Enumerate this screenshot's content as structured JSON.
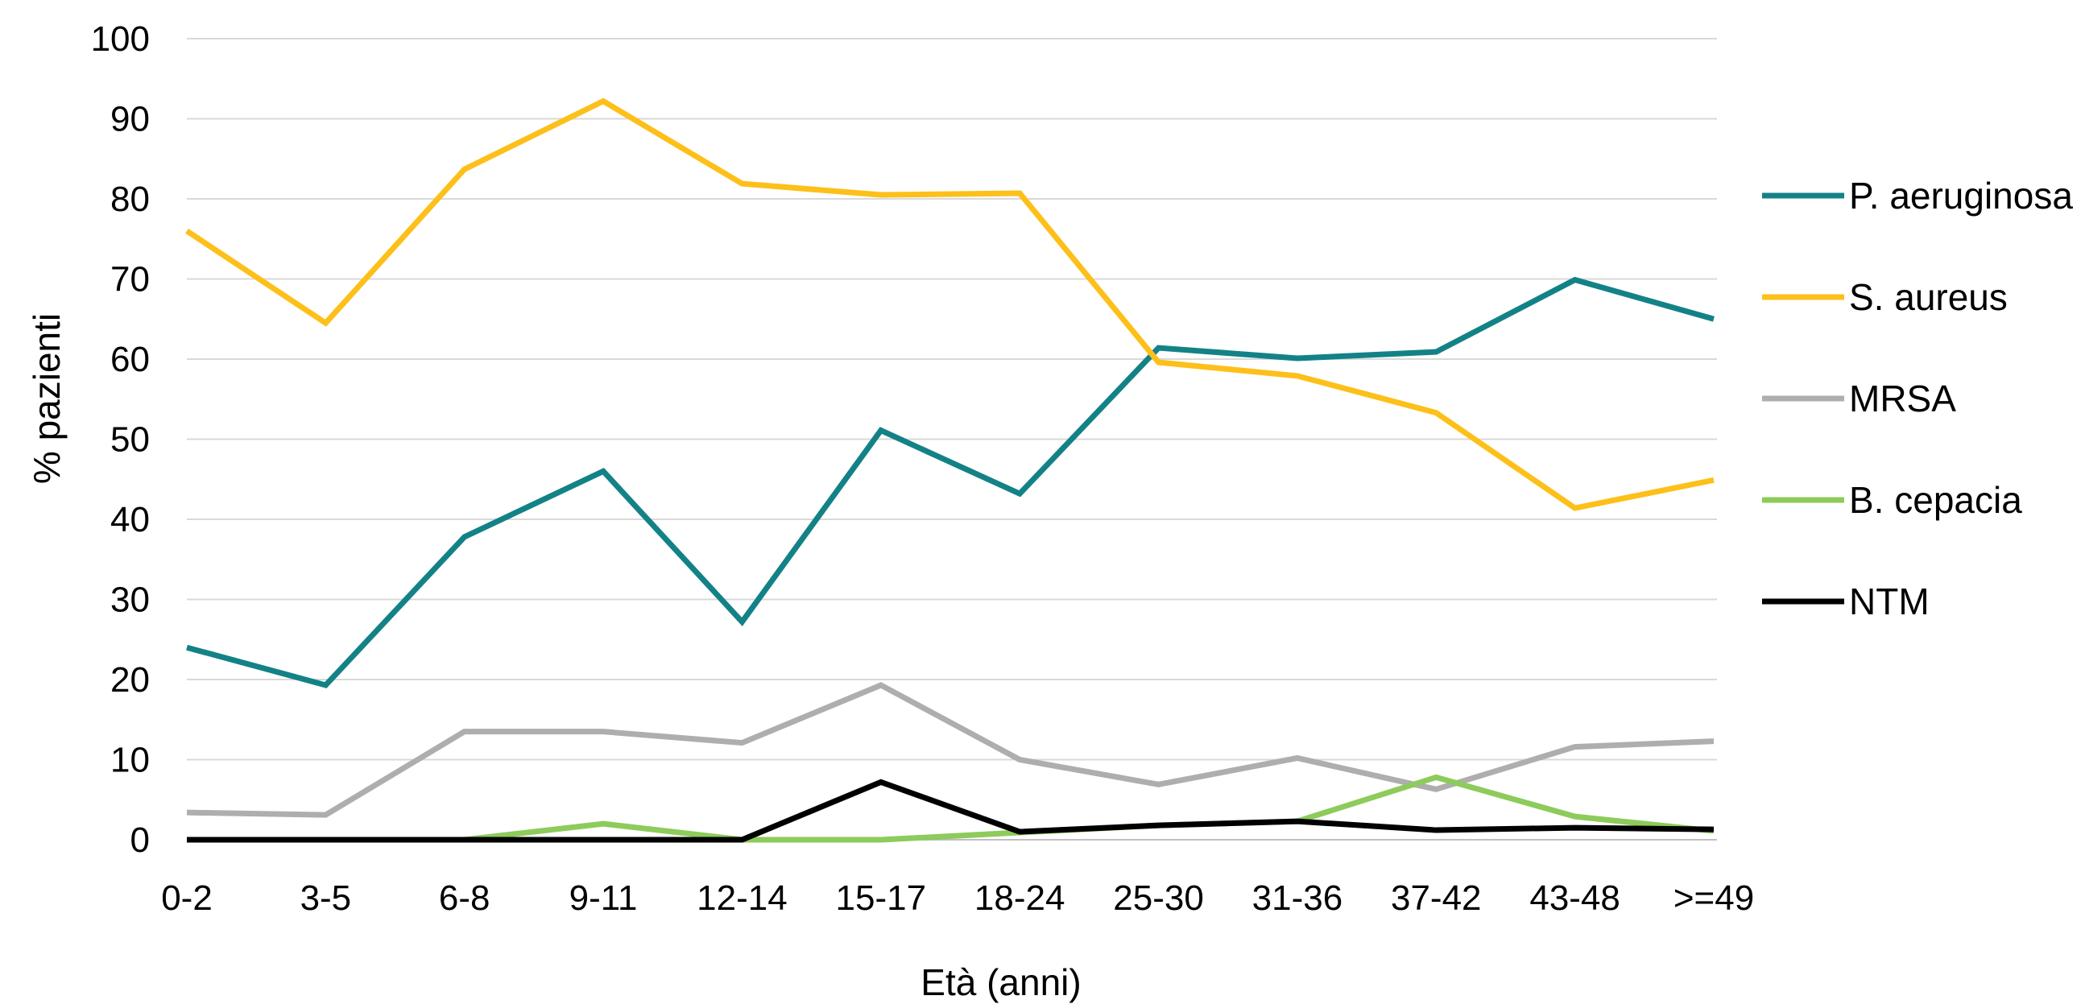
{
  "chart_data": {
    "type": "line",
    "title": "",
    "xlabel": "Età (anni)",
    "ylabel": "% pazienti",
    "ylim": [
      0,
      100
    ],
    "yticks": [
      0,
      10,
      20,
      30,
      40,
      50,
      60,
      70,
      80,
      90,
      100
    ],
    "grid": "horizontal",
    "legend_position": "right",
    "categories": [
      "0-2",
      "3-5",
      "6-8",
      "9-11",
      "12-14",
      "15-17",
      "18-24",
      "25-30",
      "31-36",
      "37-42",
      "43-48",
      ">=49"
    ],
    "series": [
      {
        "name": "P. aeruginosa",
        "color": "#138287",
        "values": [
          24,
          19.3,
          37.8,
          46,
          27.2,
          51.1,
          43.2,
          61.4,
          60.1,
          60.9,
          69.9,
          65
        ]
      },
      {
        "name": "S. aureus",
        "color": "#FDC01A",
        "values": [
          76,
          64.5,
          83.7,
          92.2,
          81.9,
          80.5,
          80.7,
          59.6,
          57.9,
          53.3,
          41.4,
          44.9
        ]
      },
      {
        "name": "MRSA",
        "color": "#AEAEAE",
        "values": [
          3.4,
          3.1,
          13.5,
          13.5,
          12.1,
          19.3,
          10,
          6.9,
          10.2,
          6.3,
          11.6,
          12.3
        ]
      },
      {
        "name": "B. cepacia",
        "color": "#8DCB5B",
        "values": [
          0,
          0,
          0,
          2,
          0,
          0,
          0.9,
          1.8,
          2.3,
          7.8,
          2.9,
          1.1
        ]
      },
      {
        "name": "NTM",
        "color": "#000000",
        "values": [
          0,
          0,
          0,
          0,
          0,
          7.2,
          1,
          1.8,
          2.3,
          1.2,
          1.5,
          1.3
        ]
      }
    ]
  }
}
